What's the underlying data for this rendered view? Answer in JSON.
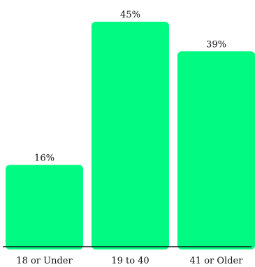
{
  "chart_data": {
    "type": "bar",
    "categories": [
      "18 or Under",
      "19 to 40",
      "41 or Older"
    ],
    "values": [
      16,
      45,
      39
    ],
    "value_labels": [
      "16%",
      "45%",
      "39%"
    ],
    "ylim": [
      0,
      45
    ],
    "grid": false,
    "colors": {
      "bar": "#00FA82",
      "baseline": "#111111"
    }
  }
}
